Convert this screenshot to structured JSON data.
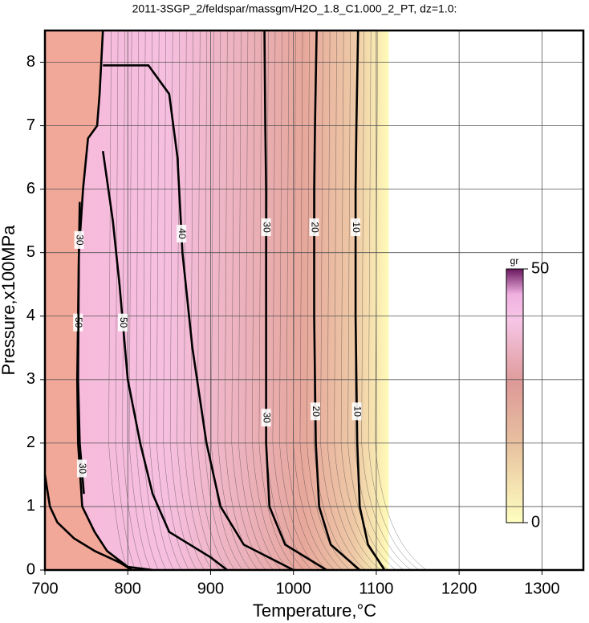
{
  "chart_data": {
    "type": "contour",
    "title": "2011-3SGP_2/feldspar/massgm/H2O_1.8_C1.000_2_PT, dz=1.0:",
    "x_label": "Temperature,°C",
    "y_label": "Pressure,x100MPa",
    "xlim": [
      700,
      1350
    ],
    "ylim": [
      0,
      8.5
    ],
    "xticks": [
      700,
      800,
      900,
      1000,
      1100,
      1200,
      1300
    ],
    "yticks": [
      0,
      1,
      2,
      3,
      4,
      5,
      6,
      7,
      8
    ],
    "grid": true,
    "contours": [
      {
        "level": 10,
        "x": [
          1078,
          1076,
          1075,
          1075,
          1077,
          1080,
          1090,
          1110
        ],
        "y": [
          8.5,
          7,
          6,
          4,
          2,
          1,
          0.4,
          0
        ],
        "label_y": [
          5.4,
          2.5
        ]
      },
      {
        "level": 20,
        "x": [
          1028,
          1026,
          1025,
          1025,
          1027,
          1031,
          1045,
          1080
        ],
        "y": [
          8.5,
          7,
          6,
          4,
          2,
          1,
          0.4,
          0
        ],
        "label_y": [
          5.4,
          2.5
        ]
      },
      {
        "level": 30,
        "x": [
          965,
          966,
          967,
          967,
          967,
          971,
          990,
          1040
        ],
        "y": [
          8.5,
          7,
          6,
          4,
          2,
          1,
          0.4,
          0
        ],
        "label_y": [
          5.4,
          2.4
        ]
      },
      {
        "level": 40,
        "x": [
          770,
          825,
          850,
          860,
          866,
          878,
          895,
          912,
          940,
          1000
        ],
        "y": [
          7.95,
          7.95,
          7.5,
          6.5,
          5,
          3.5,
          2,
          1,
          0.4,
          0
        ],
        "label_y": [
          5.3
        ]
      },
      {
        "level": 50,
        "x": [
          770,
          782,
          790,
          800,
          815,
          830,
          850,
          900,
          920
        ],
        "y": [
          6.6,
          5.5,
          4.5,
          3,
          2,
          1.2,
          0.6,
          0.2,
          0
        ],
        "label_y": [
          3.9
        ]
      },
      {
        "level": 50,
        "x": [
          770,
          766,
          763,
          752,
          746,
          741,
          739,
          740,
          745,
          760,
          775,
          800,
          830
        ],
        "y": [
          8.5,
          7.5,
          7,
          6.8,
          6,
          5,
          3,
          2,
          1,
          0.6,
          0.3,
          0.05,
          0
        ],
        "label_y": [
          3.9
        ]
      },
      {
        "level": 30,
        "x": [
          742,
          741,
          740,
          742,
          747
        ],
        "y": [
          5.8,
          5,
          3,
          2,
          1.2
        ],
        "label_y": [
          5.2,
          1.6
        ]
      },
      {
        "level": 30,
        "x": [
          700,
          706,
          715,
          735,
          760,
          790,
          805
        ],
        "y": [
          1.5,
          1,
          0.75,
          0.5,
          0.3,
          0.12,
          0
        ],
        "label_y": []
      }
    ],
    "colorbar": {
      "label": "gr",
      "clim": [
        0,
        50
      ],
      "ticks": [
        0,
        50
      ]
    }
  }
}
